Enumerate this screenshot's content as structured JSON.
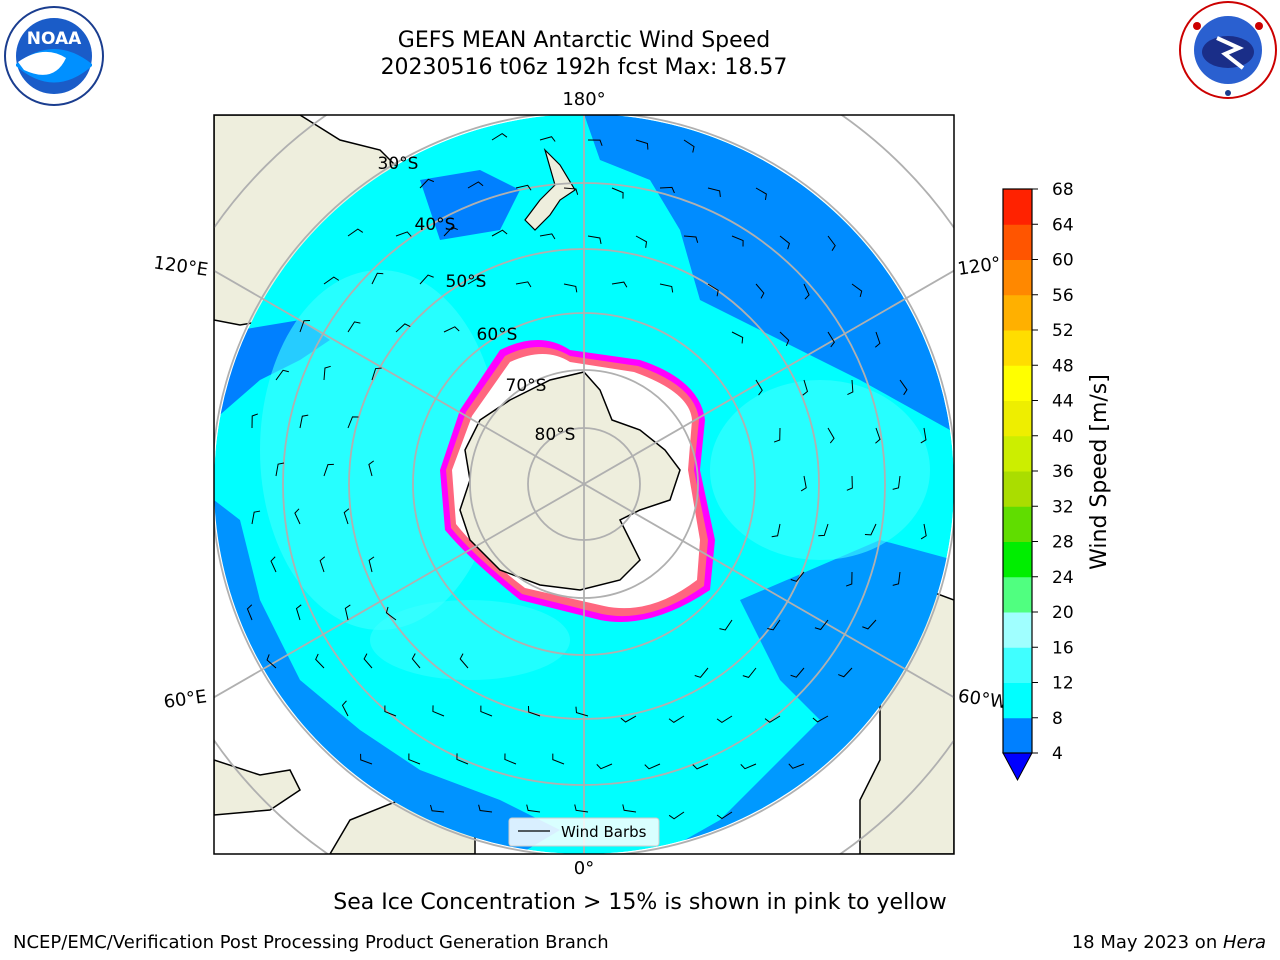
{
  "title_line1": "GEFS MEAN Antarctic Wind Speed",
  "title_line2": "20230516 t06z 192h fcst   Max: 18.57",
  "lon_labels": [
    "180°",
    "120°E",
    "120°",
    "60°E",
    "60°W",
    "0°"
  ],
  "lat_labels": [
    "30°S",
    "40°S",
    "50°S",
    "60°S",
    "70°S",
    "80°S"
  ],
  "legend_label": "Wind Barbs",
  "colorbar": {
    "label": "Wind Speed [m/s]",
    "ticks": [
      "4",
      "8",
      "12",
      "16",
      "20",
      "24",
      "28",
      "32",
      "36",
      "40",
      "44",
      "48",
      "52",
      "56",
      "60",
      "64",
      "68"
    ],
    "colors": [
      "#0080ff",
      "#00ffff",
      "#40ffff",
      "#a0ffff",
      "#50ff80",
      "#00ee00",
      "#60dd00",
      "#aadd00",
      "#ccee00",
      "#eeee00",
      "#ffff00",
      "#ffdd00",
      "#ffb000",
      "#ff8800",
      "#ff5500",
      "#ff2200"
    ],
    "under_color": "#0000ff"
  },
  "ice_caption": "Sea Ice Concentration > 15% is shown in pink to yellow",
  "footer_left": "NCEP/EMC/Verification Post Processing Product Generation Branch",
  "footer_date": "18 May 2023 on ",
  "footer_machine": "Hera",
  "logos": {
    "left": "noaa-logo",
    "right": "national-weather-service-logo"
  }
}
